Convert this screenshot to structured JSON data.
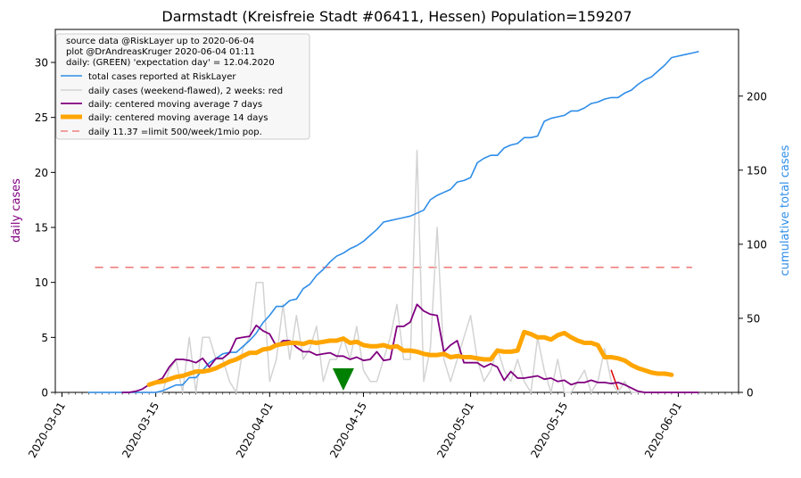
{
  "chart_data": {
    "type": "line",
    "title": "Darmstadt (Kreisfreie Stadt #06411, Hessen) Population=159207",
    "ylabel": "daily cases",
    "y2label": "cumulative total cases",
    "xlabel": "",
    "xlim": [
      "2020-02-29",
      "2020-06-10"
    ],
    "ylim": [
      0,
      33
    ],
    "y2lim": [
      0,
      245
    ],
    "x_ticks": [
      "2020-03-01",
      "2020-03-15",
      "2020-04-01",
      "2020-04-15",
      "2020-05-01",
      "2020-05-15",
      "2020-06-01"
    ],
    "y_ticks": [
      0,
      5,
      10,
      15,
      20,
      25,
      30
    ],
    "y2_ticks": [
      0,
      50,
      100,
      150,
      200
    ],
    "legend_position": "top-left",
    "legend_notes": [
      "source data @RiskLayer up to 2020-06-04",
      "plot @DrAndreasKruger 2020-06-04 01:11",
      "daily: (GREEN) 'expectation day' = 12.04.2020"
    ],
    "expectation_day": "2020-04-12",
    "colors": {
      "cumulative": "#2e8de8",
      "daily_raw": "#d3d3d3",
      "daily_recent": "#e00000",
      "ma7": "#800080",
      "ma14": "#ffa500",
      "limit": "#f08080",
      "expectation_marker": "#008000",
      "ylabel": "#800080",
      "y2label": "#2e8de8"
    },
    "series": [
      {
        "name": "total cases reported at RiskLayer",
        "axis": "right",
        "style": "cumulative",
        "x": [
          "2020-03-05",
          "2020-03-06",
          "2020-03-07",
          "2020-03-08",
          "2020-03-09",
          "2020-03-10",
          "2020-03-11",
          "2020-03-12",
          "2020-03-13",
          "2020-03-14",
          "2020-03-15",
          "2020-03-16",
          "2020-03-17",
          "2020-03-18",
          "2020-03-19",
          "2020-03-20",
          "2020-03-21",
          "2020-03-22",
          "2020-03-23",
          "2020-03-24",
          "2020-03-25",
          "2020-03-26",
          "2020-03-27",
          "2020-03-28",
          "2020-03-29",
          "2020-03-30",
          "2020-03-31",
          "2020-04-01",
          "2020-04-02",
          "2020-04-03",
          "2020-04-04",
          "2020-04-05",
          "2020-04-06",
          "2020-04-07",
          "2020-04-08",
          "2020-04-09",
          "2020-04-10",
          "2020-04-11",
          "2020-04-12",
          "2020-04-13",
          "2020-04-14",
          "2020-04-15",
          "2020-04-16",
          "2020-04-17",
          "2020-04-18",
          "2020-04-19",
          "2020-04-20",
          "2020-04-21",
          "2020-04-22",
          "2020-04-23",
          "2020-04-24",
          "2020-04-25",
          "2020-04-26",
          "2020-04-27",
          "2020-04-28",
          "2020-04-29",
          "2020-04-30",
          "2020-05-01",
          "2020-05-02",
          "2020-05-03",
          "2020-05-04",
          "2020-05-05",
          "2020-05-06",
          "2020-05-07",
          "2020-05-08",
          "2020-05-09",
          "2020-05-10",
          "2020-05-11",
          "2020-05-12",
          "2020-05-13",
          "2020-05-14",
          "2020-05-15",
          "2020-05-16",
          "2020-05-17",
          "2020-05-18",
          "2020-05-19",
          "2020-05-20",
          "2020-05-21",
          "2020-05-22",
          "2020-05-23",
          "2020-05-24",
          "2020-05-25",
          "2020-05-26",
          "2020-05-27",
          "2020-05-28",
          "2020-05-29",
          "2020-05-30",
          "2020-05-31",
          "2020-06-01",
          "2020-06-02",
          "2020-06-03"
        ],
        "y": [
          0,
          0,
          0,
          0,
          0,
          0,
          0,
          0,
          0,
          0,
          0,
          1,
          3,
          5,
          5,
          10,
          10,
          15,
          20,
          23,
          26,
          27,
          27,
          31,
          35,
          40,
          47,
          52,
          58,
          58,
          62,
          63,
          70,
          73,
          79,
          83,
          88,
          92,
          94,
          97,
          99,
          102,
          106,
          110,
          115,
          116,
          117,
          118,
          119,
          121,
          123,
          130,
          133,
          135,
          137,
          142,
          143,
          145,
          155,
          158,
          160,
          160,
          165,
          167,
          168,
          172,
          172,
          173,
          183,
          185,
          186,
          187,
          190,
          190,
          192,
          195,
          196,
          198,
          199,
          199,
          202,
          204,
          208,
          211,
          213,
          217,
          221,
          226,
          227,
          228,
          229
        ],
        "x_extra": [
          "2020-06-04"
        ],
        "y_extra": [
          230
        ]
      },
      {
        "name": "daily cases (weekend-flawed), 2 weeks: red",
        "axis": "left",
        "style": "daily",
        "x": [
          "2020-03-05",
          "2020-03-06",
          "2020-03-07",
          "2020-03-08",
          "2020-03-09",
          "2020-03-10",
          "2020-03-11",
          "2020-03-12",
          "2020-03-13",
          "2020-03-14",
          "2020-03-15",
          "2020-03-16",
          "2020-03-17",
          "2020-03-18",
          "2020-03-19",
          "2020-03-20",
          "2020-03-21",
          "2020-03-22",
          "2020-03-23",
          "2020-03-24",
          "2020-03-25",
          "2020-03-26",
          "2020-03-27",
          "2020-03-28",
          "2020-03-29",
          "2020-03-30",
          "2020-03-31",
          "2020-04-01",
          "2020-04-02",
          "2020-04-03",
          "2020-04-04",
          "2020-04-05",
          "2020-04-06",
          "2020-04-07",
          "2020-04-08",
          "2020-04-09",
          "2020-04-10",
          "2020-04-11",
          "2020-04-12",
          "2020-04-13",
          "2020-04-14",
          "2020-04-15",
          "2020-04-16",
          "2020-04-17",
          "2020-04-18",
          "2020-04-19",
          "2020-04-20",
          "2020-04-21",
          "2020-04-22",
          "2020-04-23",
          "2020-04-24",
          "2020-04-25",
          "2020-04-26",
          "2020-04-27",
          "2020-04-28",
          "2020-04-29",
          "2020-04-30",
          "2020-05-01",
          "2020-05-02",
          "2020-05-03",
          "2020-05-04",
          "2020-05-05",
          "2020-05-06",
          "2020-05-07",
          "2020-05-08",
          "2020-05-09",
          "2020-05-10",
          "2020-05-11",
          "2020-05-12",
          "2020-05-13",
          "2020-05-14",
          "2020-05-15",
          "2020-05-16",
          "2020-05-17",
          "2020-05-18",
          "2020-05-19",
          "2020-05-20",
          "2020-05-21",
          "2020-05-22",
          "2020-05-23",
          "2020-05-24",
          "2020-05-25",
          "2020-05-26",
          "2020-05-27",
          "2020-05-28",
          "2020-05-29",
          "2020-05-30",
          "2020-05-31",
          "2020-06-01",
          "2020-06-02",
          "2020-06-03",
          "2020-06-04"
        ],
        "y": [
          0,
          0,
          0,
          0,
          0,
          0,
          0,
          0,
          0,
          0,
          0,
          0,
          2,
          3,
          0,
          5,
          0,
          5,
          5,
          3,
          3,
          1,
          0,
          4,
          5,
          10,
          10,
          1,
          3,
          8,
          3,
          7,
          3,
          4,
          6,
          1,
          3,
          3,
          5,
          3,
          6,
          2,
          1,
          1,
          3,
          5,
          8,
          3,
          3,
          22,
          1,
          4,
          15,
          3,
          1,
          3,
          5,
          7,
          3,
          1,
          2,
          4,
          2,
          1,
          3,
          1,
          0,
          5,
          2,
          0,
          3,
          0,
          0,
          1,
          2,
          0,
          1,
          4,
          1,
          0,
          1,
          0,
          0,
          0,
          0,
          0,
          0,
          0,
          0,
          0,
          0,
          0
        ]
      },
      {
        "name": "daily: centered moving average 7 days",
        "axis": "left",
        "style": "ma7",
        "x": [
          "2020-03-10",
          "2020-03-11",
          "2020-03-12",
          "2020-03-13",
          "2020-03-14",
          "2020-03-15",
          "2020-03-16",
          "2020-03-17",
          "2020-03-18",
          "2020-03-19",
          "2020-03-20",
          "2020-03-21",
          "2020-03-22",
          "2020-03-23",
          "2020-03-24",
          "2020-03-25",
          "2020-03-26",
          "2020-03-27",
          "2020-03-28",
          "2020-03-29",
          "2020-03-30",
          "2020-03-31",
          "2020-04-01",
          "2020-04-02",
          "2020-04-03",
          "2020-04-04",
          "2020-04-05",
          "2020-04-06",
          "2020-04-07",
          "2020-04-08",
          "2020-04-09",
          "2020-04-10",
          "2020-04-11",
          "2020-04-12",
          "2020-04-13",
          "2020-04-14",
          "2020-04-15",
          "2020-04-16",
          "2020-04-17",
          "2020-04-18",
          "2020-04-19",
          "2020-04-20",
          "2020-04-21",
          "2020-04-22",
          "2020-04-23",
          "2020-04-24",
          "2020-04-25",
          "2020-04-26",
          "2020-04-27",
          "2020-04-28",
          "2020-04-29",
          "2020-04-30",
          "2020-05-01",
          "2020-05-02",
          "2020-05-03",
          "2020-05-04",
          "2020-05-05",
          "2020-05-06",
          "2020-05-07",
          "2020-05-08",
          "2020-05-09",
          "2020-05-10",
          "2020-05-11",
          "2020-05-12",
          "2020-05-13",
          "2020-05-14",
          "2020-05-15",
          "2020-05-16",
          "2020-05-17",
          "2020-05-18",
          "2020-05-19",
          "2020-05-20",
          "2020-05-21",
          "2020-05-22",
          "2020-05-23",
          "2020-05-24",
          "2020-05-25",
          "2020-05-26",
          "2020-05-27",
          "2020-05-28",
          "2020-05-29",
          "2020-05-30",
          "2020-05-31",
          "2020-06-01",
          "2020-06-02",
          "2020-06-03",
          "2020-06-04"
        ],
        "y": [
          0,
          0,
          0.1,
          0.3,
          0.7,
          1.0,
          1.3,
          2.3,
          3.0,
          3.0,
          2.9,
          2.7,
          3.1,
          2.3,
          3.1,
          3.1,
          3.6,
          4.9,
          5.0,
          5.1,
          6.1,
          5.6,
          5.3,
          4.2,
          4.7,
          4.7,
          4.1,
          3.7,
          3.7,
          3.4,
          3.5,
          3.6,
          3.3,
          3.3,
          3.0,
          3.2,
          2.9,
          3.0,
          3.7,
          2.9,
          3.0,
          6.0,
          6.0,
          6.4,
          8.0,
          7.4,
          7.1,
          7.0,
          3.7,
          4.3,
          4.7,
          2.7,
          2.7,
          2.7,
          2.3,
          2.6,
          2.3,
          1.1,
          1.9,
          1.3,
          1.3,
          1.4,
          1.5,
          1.2,
          1.3,
          1.0,
          1.1,
          0.7,
          0.9,
          0.9,
          1.1,
          0.9,
          0.9,
          0.8,
          0.9,
          0.7,
          0.4,
          0.1,
          0.0,
          0.0,
          0.0,
          0.0,
          0.0,
          0.0,
          0.0,
          0.0,
          0.0
        ]
      },
      {
        "name": "daily: centered moving average 14 days",
        "axis": "left",
        "style": "ma14",
        "x": [
          "2020-03-14",
          "2020-03-15",
          "2020-03-16",
          "2020-03-17",
          "2020-03-18",
          "2020-03-19",
          "2020-03-20",
          "2020-03-21",
          "2020-03-22",
          "2020-03-23",
          "2020-03-24",
          "2020-03-25",
          "2020-03-26",
          "2020-03-27",
          "2020-03-28",
          "2020-03-29",
          "2020-03-30",
          "2020-03-31",
          "2020-04-01",
          "2020-04-02",
          "2020-04-03",
          "2020-04-04",
          "2020-04-05",
          "2020-04-06",
          "2020-04-07",
          "2020-04-08",
          "2020-04-09",
          "2020-04-10",
          "2020-04-11",
          "2020-04-12",
          "2020-04-13",
          "2020-04-14",
          "2020-04-15",
          "2020-04-16",
          "2020-04-17",
          "2020-04-18",
          "2020-04-19",
          "2020-04-20",
          "2020-04-21",
          "2020-04-22",
          "2020-04-23",
          "2020-04-24",
          "2020-04-25",
          "2020-04-26",
          "2020-04-27",
          "2020-04-28",
          "2020-04-29",
          "2020-04-30",
          "2020-05-01",
          "2020-05-02",
          "2020-05-03",
          "2020-05-04",
          "2020-05-05",
          "2020-05-06",
          "2020-05-07",
          "2020-05-08",
          "2020-05-09",
          "2020-05-10",
          "2020-05-11",
          "2020-05-12",
          "2020-05-13",
          "2020-05-14",
          "2020-05-15",
          "2020-05-16",
          "2020-05-17",
          "2020-05-18",
          "2020-05-19",
          "2020-05-20",
          "2020-05-21",
          "2020-05-22",
          "2020-05-23",
          "2020-05-24",
          "2020-05-25",
          "2020-05-26",
          "2020-05-27",
          "2020-05-28",
          "2020-05-29",
          "2020-05-30",
          "2020-05-31"
        ],
        "y": [
          0.7,
          0.9,
          1.0,
          1.2,
          1.4,
          1.5,
          1.7,
          1.9,
          1.9,
          2.0,
          2.2,
          2.5,
          2.8,
          3.0,
          3.3,
          3.6,
          3.6,
          3.9,
          4.0,
          4.3,
          4.4,
          4.5,
          4.5,
          4.4,
          4.6,
          4.5,
          4.6,
          4.7,
          4.7,
          4.9,
          4.5,
          4.6,
          4.3,
          4.2,
          4.2,
          4.3,
          4.1,
          4.2,
          3.8,
          3.8,
          3.7,
          3.5,
          3.4,
          3.4,
          3.5,
          3.2,
          3.3,
          3.2,
          3.2,
          3.1,
          3.0,
          3.0,
          3.8,
          3.7,
          3.7,
          3.8,
          5.5,
          5.3,
          5.0,
          5.0,
          4.8,
          5.2,
          5.4,
          5.0,
          4.7,
          4.5,
          4.5,
          4.3,
          3.2,
          3.2,
          3.1,
          2.9,
          2.5,
          2.2,
          2.0,
          1.8,
          1.7,
          1.7,
          1.6
        ]
      },
      {
        "name": "daily 11.37 =limit 500/week/1mio pop.",
        "axis": "left",
        "style": "limit",
        "x": [
          "2020-03-06",
          "2020-06-03"
        ],
        "y": [
          11.37,
          11.37
        ]
      }
    ],
    "recent_red": {
      "x": [
        "2020-05-22",
        "2020-05-23"
      ],
      "y": [
        2.0,
        0.3
      ]
    }
  }
}
